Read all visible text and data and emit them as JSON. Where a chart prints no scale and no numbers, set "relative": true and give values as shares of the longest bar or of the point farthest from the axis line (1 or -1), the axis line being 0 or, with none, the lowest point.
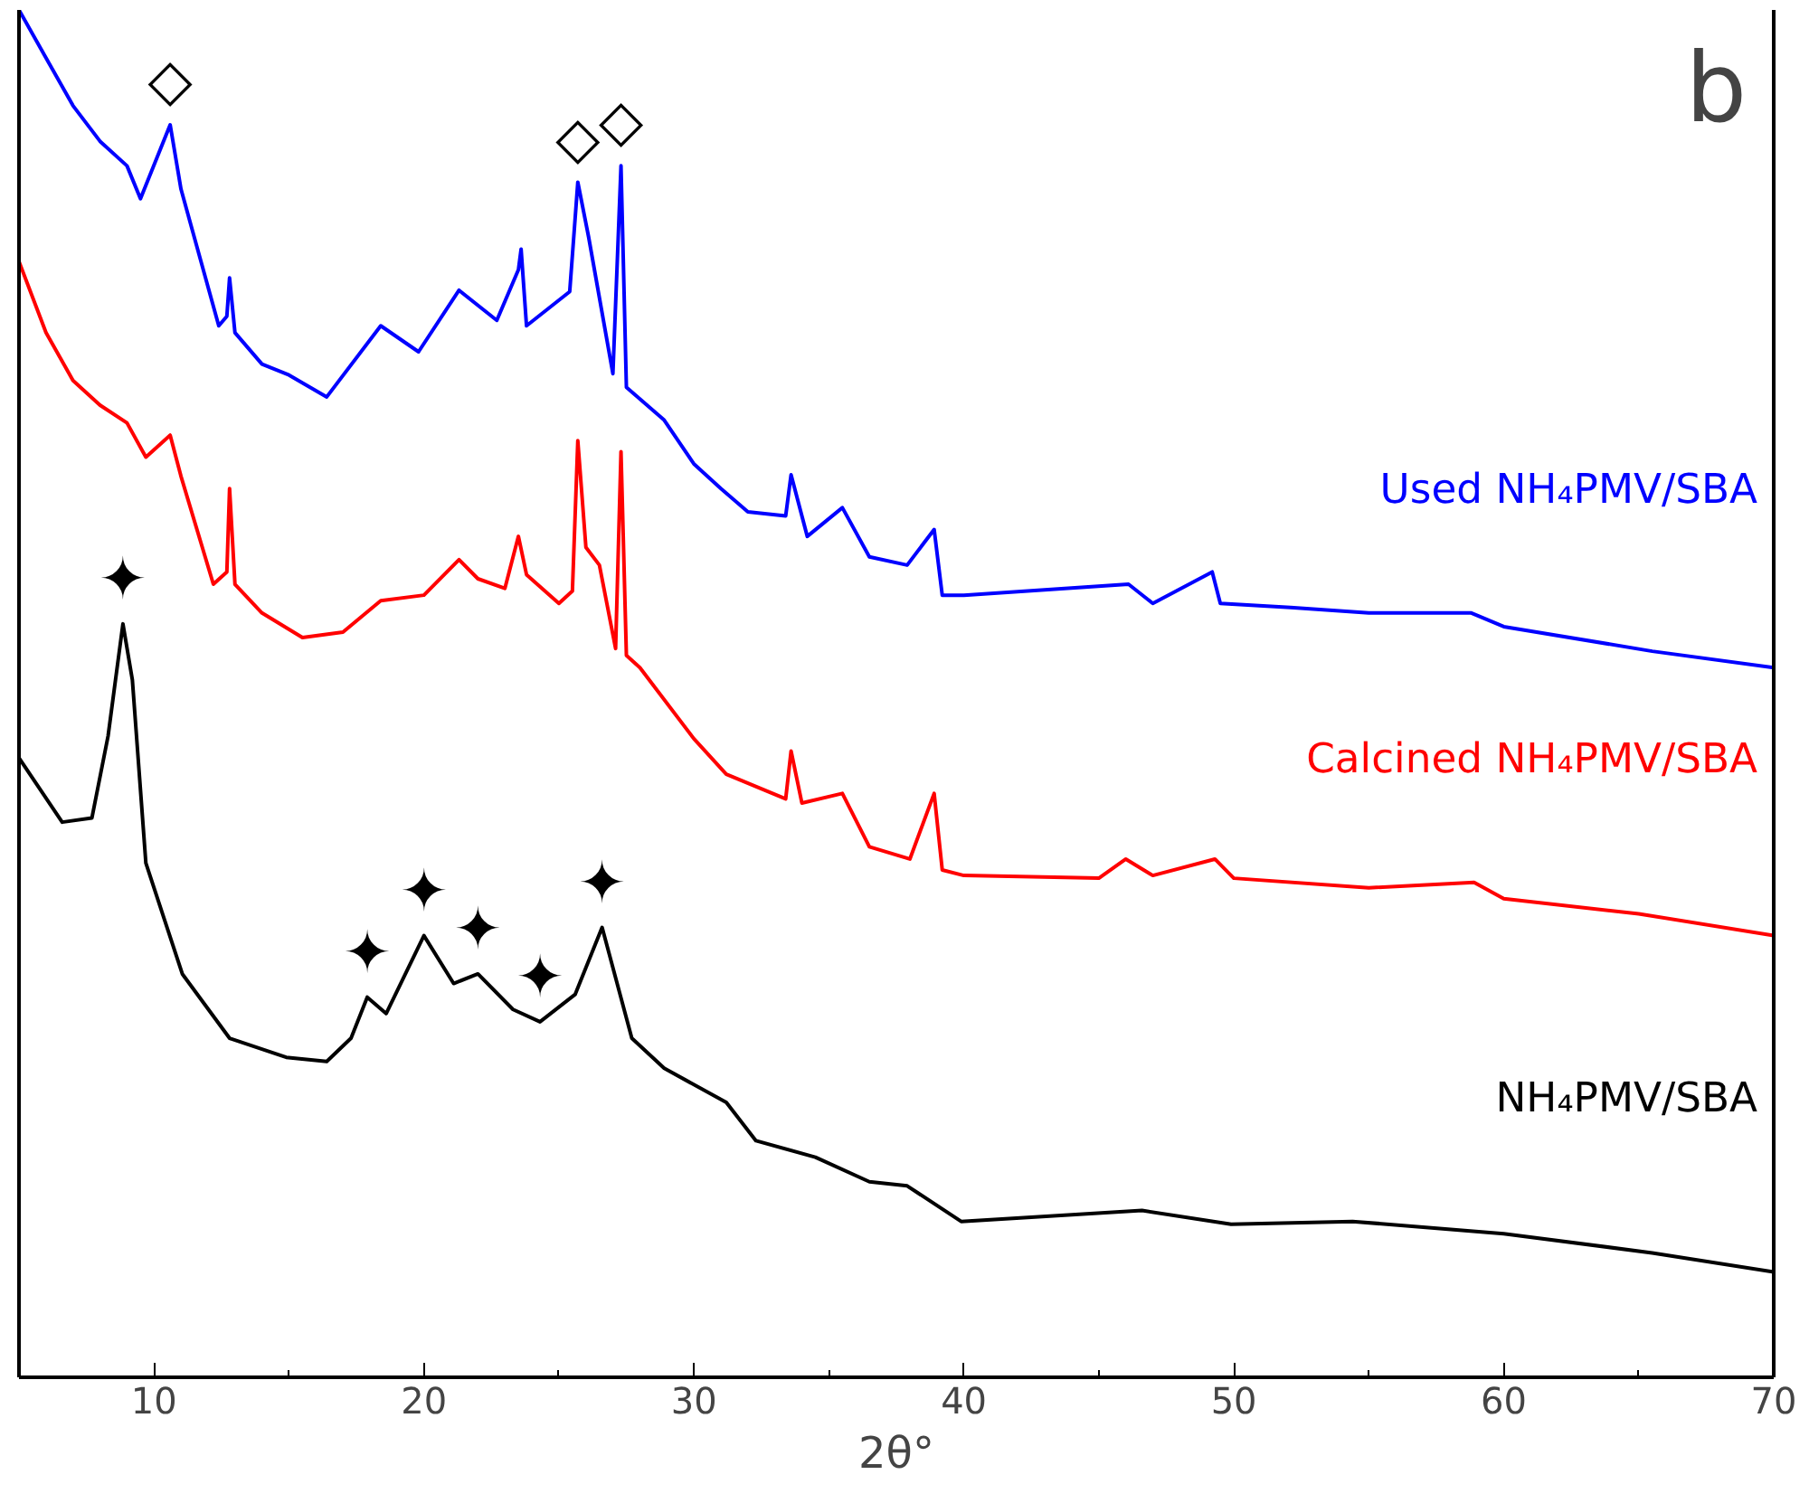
{
  "chart_data": {
    "type": "line",
    "relative": true,
    "xlabel": "2θ°",
    "xlim": [
      5,
      70
    ],
    "xticks": [
      {
        "value": 5,
        "label": null
      },
      10,
      {
        "value": 15,
        "label": null
      },
      20,
      {
        "value": 25,
        "label": null
      },
      30,
      {
        "value": 35,
        "label": null
      },
      40,
      {
        "value": 45,
        "label": null
      },
      50,
      {
        "value": 55,
        "label": null
      },
      60,
      {
        "value": 65,
        "label": null
      },
      70
    ],
    "grid": false,
    "legend": false,
    "marker": "none",
    "line_style": "solid",
    "annotations": [
      "b",
      {
        "text": "◇",
        "x": 10.6,
        "y": 0.916
      },
      {
        "text": "◇",
        "x": 25.7,
        "y": 0.874
      },
      {
        "text": "◇",
        "x": 27.3,
        "y": 0.886
      },
      {
        "text": "✦",
        "x": 8.85,
        "y": 0.551
      },
      {
        "text": "✦",
        "x": 17.9,
        "y": 0.278
      },
      {
        "text": "✦",
        "x": 20.0,
        "y": 0.323
      },
      {
        "text": "✦",
        "x": 22.0,
        "y": 0.295
      },
      {
        "text": "✦",
        "x": 24.3,
        "y": 0.26
      },
      {
        "text": "✦",
        "x": 26.6,
        "y": 0.329
      }
    ],
    "series": [
      {
        "name": "Used NH₄PMV/SBA",
        "color": "#0000ff",
        "x": [
          5,
          6,
          7,
          8,
          9,
          9.5,
          10.6,
          11,
          12.4,
          12.7,
          12.8,
          13,
          14,
          15,
          16.4,
          18.4,
          19.8,
          21.3,
          22.7,
          23.5,
          23.6,
          23.8,
          25.4,
          25.7,
          26.1,
          27.0,
          27.3,
          27.5,
          28.9,
          30,
          31,
          32,
          33.4,
          33.6,
          34.2,
          35.5,
          36.5,
          37.9,
          38.9,
          39.2,
          40,
          46.1,
          47,
          49.2,
          49.5,
          52.1,
          55,
          58.8,
          60,
          65.5,
          70
        ],
        "values": [
          1.0,
          0.965,
          0.93,
          0.904,
          0.886,
          0.862,
          0.916,
          0.869,
          0.769,
          0.776,
          0.804,
          0.764,
          0.741,
          0.733,
          0.717,
          0.769,
          0.75,
          0.795,
          0.773,
          0.81,
          0.825,
          0.769,
          0.794,
          0.874,
          0.834,
          0.734,
          0.886,
          0.724,
          0.7,
          0.668,
          0.65,
          0.633,
          0.63,
          0.66,
          0.615,
          0.636,
          0.6,
          0.594,
          0.62,
          0.572,
          0.572,
          0.58,
          0.566,
          0.589,
          0.566,
          0.563,
          0.559,
          0.559,
          0.549,
          0.531,
          0.519
        ]
      },
      {
        "name": "Calcined NH₄PMV/SBA",
        "color": "#ff0000",
        "x": [
          5,
          6,
          7,
          8,
          9,
          9.7,
          10.6,
          11,
          12.2,
          12.7,
          12.8,
          13,
          14,
          15.5,
          17,
          18.4,
          20,
          21.3,
          22,
          23,
          23.5,
          23.8,
          25.0,
          25.5,
          25.7,
          26,
          26.5,
          27.1,
          27.3,
          27.5,
          28,
          30,
          31.2,
          33.4,
          33.6,
          34,
          35.5,
          36.5,
          38,
          38.9,
          39.2,
          40,
          45,
          46,
          47,
          49.3,
          50,
          55,
          58.9,
          60,
          65,
          70
        ],
        "values": [
          0.816,
          0.764,
          0.729,
          0.711,
          0.698,
          0.673,
          0.689,
          0.659,
          0.58,
          0.589,
          0.65,
          0.58,
          0.559,
          0.541,
          0.545,
          0.568,
          0.572,
          0.598,
          0.584,
          0.577,
          0.615,
          0.587,
          0.566,
          0.575,
          0.685,
          0.607,
          0.594,
          0.533,
          0.677,
          0.528,
          0.519,
          0.467,
          0.441,
          0.423,
          0.458,
          0.42,
          0.427,
          0.388,
          0.379,
          0.427,
          0.371,
          0.367,
          0.365,
          0.379,
          0.367,
          0.379,
          0.365,
          0.358,
          0.362,
          0.35,
          0.339,
          0.323
        ]
      },
      {
        "name": "NH₄PMV/SBA",
        "color": "#000000",
        "x": [
          5,
          6.6,
          7.7,
          8.3,
          8.85,
          9.2,
          9.7,
          11.05,
          12.8,
          14.9,
          16.4,
          17.3,
          17.9,
          18.6,
          20.0,
          21.1,
          22.0,
          23.3,
          24.3,
          25.6,
          26.6,
          27.7,
          28.9,
          31.2,
          32.3,
          34.5,
          36.5,
          37.9,
          39.9,
          46.6,
          49.9,
          54.4,
          60,
          65.5,
          70
        ],
        "values": [
          0.453,
          0.406,
          0.409,
          0.469,
          0.551,
          0.51,
          0.376,
          0.295,
          0.248,
          0.234,
          0.231,
          0.248,
          0.278,
          0.266,
          0.323,
          0.288,
          0.295,
          0.269,
          0.26,
          0.28,
          0.329,
          0.248,
          0.226,
          0.201,
          0.173,
          0.161,
          0.143,
          0.14,
          0.114,
          0.122,
          0.112,
          0.114,
          0.105,
          0.091,
          0.077
        ]
      }
    ]
  }
}
